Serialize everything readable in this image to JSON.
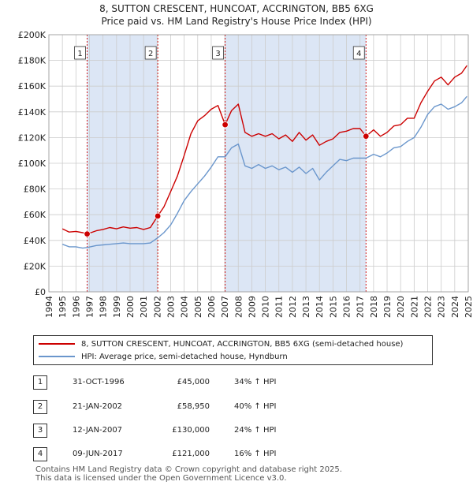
{
  "title_line1": "8, SUTTON CRESCENT, HUNCOAT, ACCRINGTON, BB5 6XG",
  "title_line2": "Price paid vs. HM Land Registry's House Price Index (HPI)",
  "legend": {
    "property": "8, SUTTON CRESCENT, HUNCOAT, ACCRINGTON, BB5 6XG (semi-detached house)",
    "hpi": "HPI: Average price, semi-detached house, Hyndburn"
  },
  "colors": {
    "property": "#cc0000",
    "hpi": "#6a96cc",
    "shade": "#dce6f5",
    "grid": "#cccccc"
  },
  "sales": [
    {
      "num": "1",
      "date": "31-OCT-1996",
      "price": "£45,000",
      "hpi": "34% ↑ HPI"
    },
    {
      "num": "2",
      "date": "21-JAN-2002",
      "price": "£58,950",
      "hpi": "40% ↑ HPI"
    },
    {
      "num": "3",
      "date": "12-JAN-2007",
      "price": "£130,000",
      "hpi": "24% ↑ HPI"
    },
    {
      "num": "4",
      "date": "09-JUN-2017",
      "price": "£121,000",
      "hpi": "16% ↑ HPI"
    }
  ],
  "footer_line1": "Contains HM Land Registry data © Crown copyright and database right 2025.",
  "footer_line2": "This data is licensed under the Open Government Licence v3.0.",
  "chart_data": {
    "type": "line",
    "title": "Price paid vs. HM Land Registry's House Price Index (HPI)",
    "xlabel": "",
    "ylabel": "",
    "xlim": [
      1994,
      2025
    ],
    "ylim": [
      0,
      200000
    ],
    "ytick_values": [
      0,
      20000,
      40000,
      60000,
      80000,
      100000,
      120000,
      140000,
      160000,
      180000,
      200000
    ],
    "ytick_labels": [
      "£0",
      "£20K",
      "£40K",
      "£60K",
      "£80K",
      "£100K",
      "£120K",
      "£140K",
      "£160K",
      "£180K",
      "£200K"
    ],
    "xtick_values": [
      1994,
      1995,
      1996,
      1997,
      1998,
      1999,
      2000,
      2001,
      2002,
      2003,
      2004,
      2005,
      2006,
      2007,
      2008,
      2009,
      2010,
      2011,
      2012,
      2013,
      2014,
      2015,
      2016,
      2017,
      2018,
      2019,
      2020,
      2021,
      2022,
      2023,
      2024,
      2025
    ],
    "xtick_labels": [
      "1994",
      "1995",
      "1996",
      "1997",
      "1998",
      "1999",
      "2000",
      "2001",
      "2002",
      "2003",
      "2004",
      "2005",
      "2006",
      "2007",
      "2008",
      "2009",
      "2010",
      "2011",
      "2012",
      "2013",
      "2014",
      "2015",
      "2016",
      "2017",
      "2018",
      "2019",
      "2020",
      "2021",
      "2022",
      "2023",
      "2024",
      "2025"
    ],
    "grid": true,
    "shaded_periods": [
      [
        1996.83,
        2002.05
      ],
      [
        2007.03,
        2017.44
      ]
    ],
    "sale_markers": [
      {
        "label": "1",
        "x": 1996.83,
        "y": 45000
      },
      {
        "label": "2",
        "x": 2002.05,
        "y": 58950
      },
      {
        "label": "3",
        "x": 2007.03,
        "y": 130000
      },
      {
        "label": "4",
        "x": 2017.44,
        "y": 121000
      }
    ],
    "series": [
      {
        "name": "8, SUTTON CRESCENT, HUNCOAT, ACCRINGTON, BB5 6XG (semi-detached house)",
        "x": [
          1995.0,
          1995.5,
          1996.0,
          1996.5,
          1996.83,
          1997.5,
          1998.0,
          1998.5,
          1999.0,
          1999.5,
          2000.0,
          2000.5,
          2001.0,
          2001.5,
          2002.05,
          2002.5,
          2003.0,
          2003.5,
          2004.0,
          2004.5,
          2005.0,
          2005.5,
          2006.0,
          2006.5,
          2007.03,
          2007.5,
          2008.0,
          2008.5,
          2009.0,
          2009.5,
          2010.0,
          2010.5,
          2011.0,
          2011.5,
          2012.0,
          2012.5,
          2013.0,
          2013.5,
          2014.0,
          2014.5,
          2015.0,
          2015.5,
          2016.0,
          2016.5,
          2017.0,
          2017.44,
          2018.0,
          2018.5,
          2019.0,
          2019.5,
          2020.0,
          2020.5,
          2021.0,
          2021.5,
          2022.0,
          2022.5,
          2023.0,
          2023.5,
          2024.0,
          2024.5,
          2024.9
        ],
        "values": [
          49000,
          46500,
          47000,
          46000,
          45000,
          47500,
          48500,
          50000,
          49000,
          50500,
          49500,
          50000,
          48500,
          50000,
          58950,
          66000,
          78000,
          90000,
          106000,
          123000,
          133000,
          137000,
          142000,
          145000,
          130000,
          141000,
          146000,
          124000,
          121000,
          123000,
          121000,
          123000,
          119000,
          122000,
          117000,
          124000,
          118000,
          122000,
          114000,
          117000,
          119000,
          124000,
          125000,
          127000,
          127000,
          121000,
          126000,
          121000,
          124000,
          129000,
          130000,
          135000,
          135000,
          147000,
          156000,
          164000,
          167000,
          161000,
          167000,
          170000,
          176000
        ]
      },
      {
        "name": "HPI: Average price, semi-detached house, Hyndburn",
        "x": [
          1995.0,
          1995.5,
          1996.0,
          1996.5,
          1996.83,
          1997.5,
          1998.0,
          1998.5,
          1999.0,
          1999.5,
          2000.0,
          2000.5,
          2001.0,
          2001.5,
          2002.05,
          2002.5,
          2003.0,
          2003.5,
          2004.0,
          2004.5,
          2005.0,
          2005.5,
          2006.0,
          2006.5,
          2007.03,
          2007.5,
          2008.0,
          2008.5,
          2009.0,
          2009.5,
          2010.0,
          2010.5,
          2011.0,
          2011.5,
          2012.0,
          2012.5,
          2013.0,
          2013.5,
          2014.0,
          2014.5,
          2015.0,
          2015.5,
          2016.0,
          2016.5,
          2017.0,
          2017.44,
          2018.0,
          2018.5,
          2019.0,
          2019.5,
          2020.0,
          2020.5,
          2021.0,
          2021.5,
          2022.0,
          2022.5,
          2023.0,
          2023.5,
          2024.0,
          2024.5,
          2024.9
        ],
        "values": [
          37000,
          35000,
          35000,
          34000,
          34500,
          36000,
          36500,
          37000,
          37500,
          38000,
          37500,
          37500,
          37500,
          38000,
          42000,
          46000,
          52000,
          61000,
          71000,
          78000,
          84000,
          90000,
          97000,
          105000,
          105000,
          112000,
          115000,
          98000,
          96000,
          99000,
          96000,
          98000,
          95000,
          97000,
          93000,
          97000,
          92000,
          96000,
          87000,
          93000,
          98000,
          103000,
          102000,
          104000,
          104000,
          104000,
          107000,
          105000,
          108000,
          112000,
          113000,
          117000,
          120000,
          128000,
          138000,
          144000,
          146000,
          142000,
          144000,
          147000,
          152000
        ]
      }
    ]
  }
}
